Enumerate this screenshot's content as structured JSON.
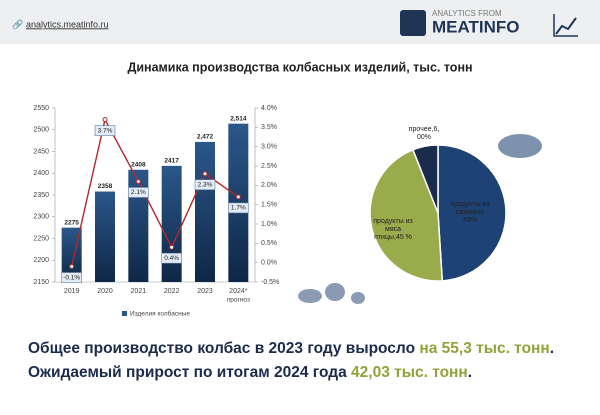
{
  "header": {
    "url": "analytics.meatinfo.ru",
    "brand_small": "ANALYTICS FROM",
    "brand": "MEATINFO"
  },
  "chart_data": [
    {
      "type": "bar",
      "title": "Динамика производства колбасных изделий, тыс. тонн",
      "categories": [
        "2019",
        "2020",
        "2021",
        "2022",
        "2023",
        "2024*"
      ],
      "x_note": "прогноз",
      "ylim": [
        2150,
        2550
      ],
      "yticks": [
        2150,
        2200,
        2250,
        2300,
        2350,
        2400,
        2450,
        2500,
        2550
      ],
      "y2lim": [
        -0.5,
        4.0
      ],
      "y2ticks": [
        {
          "value": -0.5,
          "label": "-0.5%"
        },
        {
          "value": 0,
          "label": "0.0%"
        },
        {
          "value": 0.5,
          "label": "0.5%"
        },
        {
          "value": 1,
          "label": "1.0%"
        },
        {
          "value": 1.5,
          "label": "1.5%"
        },
        {
          "value": 2,
          "label": "2.0%"
        },
        {
          "value": 2.5,
          "label": "2.5%"
        },
        {
          "value": 3,
          "label": "3.0%"
        },
        {
          "value": 3.5,
          "label": "3.5%"
        },
        {
          "value": 4,
          "label": "4.0%"
        }
      ],
      "grid": false,
      "series": [
        {
          "name": "Изделия колбасные",
          "color": "#2b578a",
          "values": [
            2275,
            2358,
            2408,
            2417,
            2472,
            2514
          ],
          "value_labels": [
            "2275",
            "2358",
            "2408",
            "2417",
            "2,472",
            "2,514"
          ]
        },
        {
          "type": "line",
          "axis": "y2",
          "color": "#b0282c",
          "values": [
            -0.1,
            3.7,
            2.1,
            0.4,
            2.3,
            1.7
          ],
          "value_labels": [
            "-0.1%",
            "3.7%",
            "2.1%",
            "0.4%",
            "2.3%",
            "1.7%"
          ]
        }
      ]
    },
    {
      "type": "pie",
      "labels": [
        "продукты из свинины 49%",
        "продукты из мяса птицы,45 %",
        "прочее,6, 00%"
      ],
      "values": [
        49,
        45,
        6
      ],
      "colors": [
        "#1e4273",
        "#9aab4c",
        "#1b2b4b"
      ]
    }
  ],
  "summary": [
    {
      "text": "Общее производство колбас в 2023 году выросло ",
      "highlight": "на 55,3 тыс. тонн",
      "end": "."
    },
    {
      "text": "Ожидаемый прирост по итогам 2024 года ",
      "highlight": "42,03 тыс. тонн",
      "end": "."
    }
  ]
}
